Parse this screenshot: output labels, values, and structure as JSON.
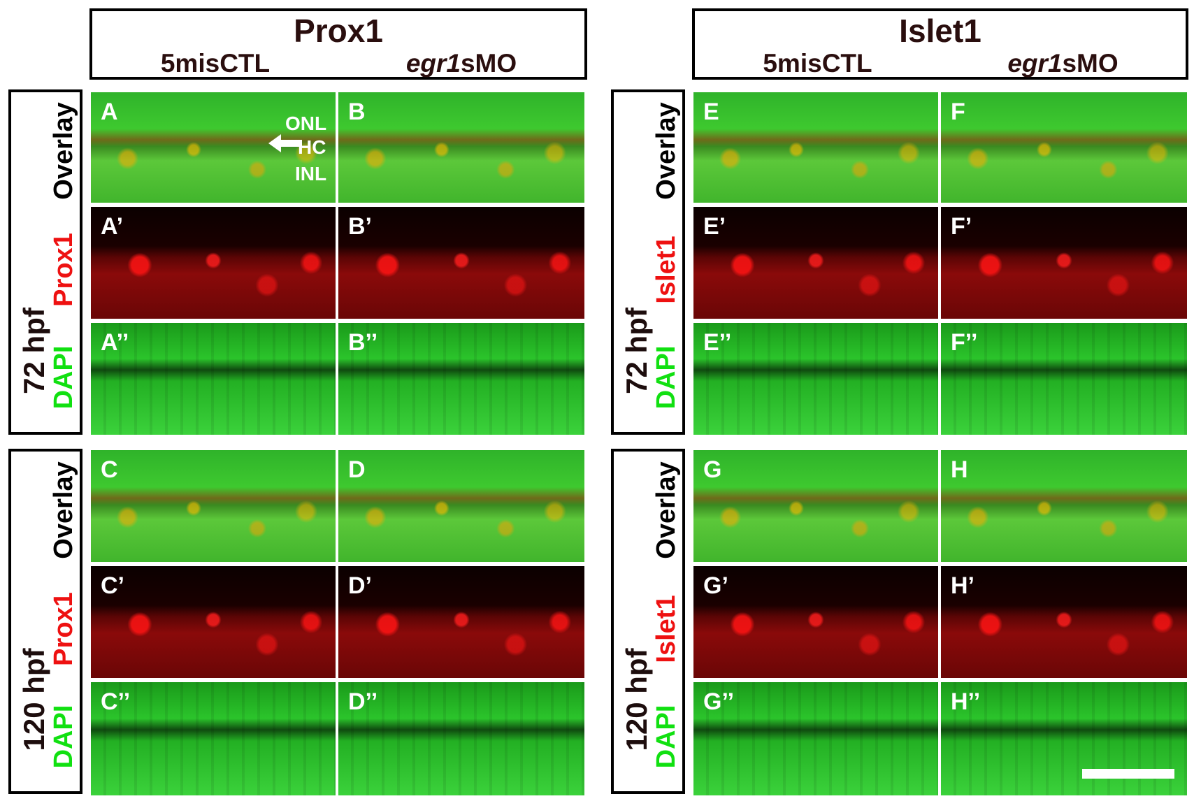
{
  "headers": [
    {
      "id": "prox1",
      "title": "Prox1",
      "sub_left": "5misCTL",
      "sub_right_italic": "egr1",
      "sub_right_rest": "sMO"
    },
    {
      "id": "islet1",
      "title": "Islet1",
      "sub_left": "5misCTL",
      "sub_right_italic": "egr1",
      "sub_right_rest": "sMO"
    }
  ],
  "row_labels": {
    "prox1_72": {
      "stage": "72 hpf",
      "overlay": "Overlay",
      "marker": "Prox1",
      "dapi": "DAPI"
    },
    "islet1_72": {
      "stage": "72 hpf",
      "overlay": "Overlay",
      "marker": "Islet1",
      "dapi": "DAPI"
    },
    "prox1_120": {
      "stage": "120 hpf",
      "overlay": "Overlay",
      "marker": "Prox1",
      "dapi": "DAPI"
    },
    "islet1_120": {
      "stage": "120 hpf",
      "overlay": "Overlay",
      "marker": "Islet1",
      "dapi": "DAPI"
    }
  },
  "panels": {
    "A": "A",
    "A1": "A’",
    "A2": "A’’",
    "B": "B",
    "B1": "B’",
    "B2": "B’’",
    "C": "C",
    "C1": "C’",
    "C2": "C’’",
    "D": "D",
    "D1": "D’",
    "D2": "D’’",
    "E": "E",
    "E1": "E’",
    "E2": "E’’",
    "F": "F",
    "F1": "F’",
    "F2": "F’’",
    "G": "G",
    "G1": "G’",
    "G2": "G’’",
    "H": "H",
    "H1": "H’",
    "H2": "H’’"
  },
  "annotations": {
    "onl": "ONL",
    "hc": "HC",
    "inl": "INL"
  },
  "colors": {
    "marker_red": "#ee1111",
    "dapi_green": "#11e011",
    "title_dark": "#2a0e0e"
  }
}
